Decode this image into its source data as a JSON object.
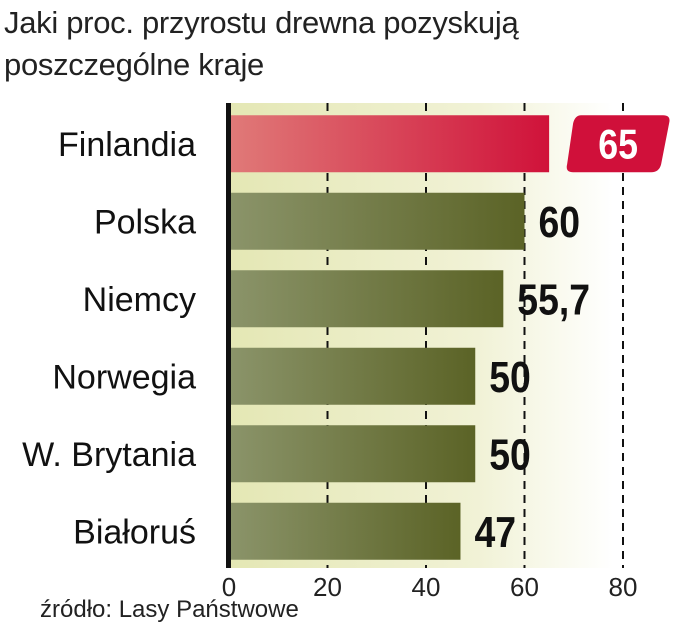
{
  "chart_data": {
    "type": "bar",
    "orientation": "horizontal",
    "title": "Jaki proc. przyrostu drewna pozyskują poszczególne kraje",
    "title_lines": [
      "Jaki proc. przyrostu drewna pozyskują",
      "poszczególne kraje"
    ],
    "categories": [
      "Finlandia",
      "Polska",
      "Niemcy",
      "Norwegia",
      "W. Brytania",
      "Białoruś"
    ],
    "values": [
      65,
      60,
      55.7,
      50,
      50,
      47
    ],
    "value_labels": [
      "65",
      "60",
      "55,7",
      "50",
      "50",
      "47"
    ],
    "highlight_index": 0,
    "xlim": [
      0,
      80
    ],
    "xticks": [
      0,
      20,
      40,
      60,
      80
    ],
    "xtick_labels": [
      "0",
      "20",
      "40",
      "60",
      "80"
    ],
    "grid": "dashed vertical",
    "xlabel": "",
    "ylabel": "",
    "source": "źródło: Lasy Państwowe",
    "colors": {
      "highlight_start": "#e07a78",
      "highlight_end": "#d0123a",
      "bar_start": "#8b946a",
      "bar_end": "#5b6326",
      "background": "#e6e8b8"
    }
  }
}
